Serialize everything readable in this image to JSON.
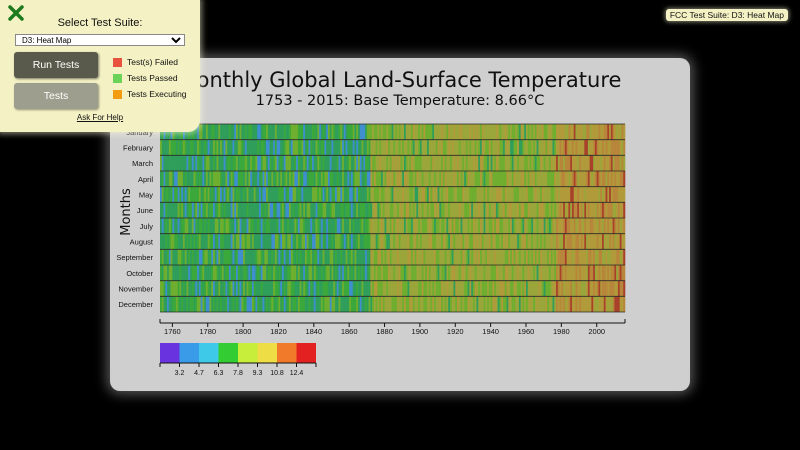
{
  "test_panel": {
    "select_label": "Select Test Suite:",
    "selected_suite": "D3: Heat Map",
    "run_tests_label": "Run Tests",
    "tests_label": "Tests",
    "legend": [
      {
        "label": "Test(s) Failed",
        "color": "#e8533f"
      },
      {
        "label": "Tests Passed",
        "color": "#6bd357"
      },
      {
        "label": "Tests Executing",
        "color": "#f39c12"
      }
    ],
    "help_label": "Ask For Help"
  },
  "badge": "FCC Test Suite: D3: Heat Map",
  "chart_data": {
    "type": "heatmap",
    "title": "Monthly Global Land-Surface Temperature",
    "subtitle": "1753 - 2015: Base Temperature: 8.66°C",
    "ylabel": "Months",
    "y_categories": [
      "January",
      "February",
      "March",
      "April",
      "May",
      "June",
      "July",
      "August",
      "September",
      "October",
      "November",
      "December"
    ],
    "x_range": [
      1753,
      2015
    ],
    "x_ticks": [
      1760,
      1780,
      1800,
      1820,
      1840,
      1860,
      1880,
      1900,
      1920,
      1940,
      1960,
      1980,
      2000
    ],
    "legend_thresholds": [
      "3.2",
      "4.7",
      "6.3",
      "7.8",
      "9.3",
      "10.8",
      "12.4"
    ],
    "legend_colors": [
      "#6a33e0",
      "#3a9be8",
      "#3fc9e8",
      "#33cc33",
      "#c6ee3a",
      "#eedd44",
      "#f07a2a",
      "#e42121"
    ]
  }
}
